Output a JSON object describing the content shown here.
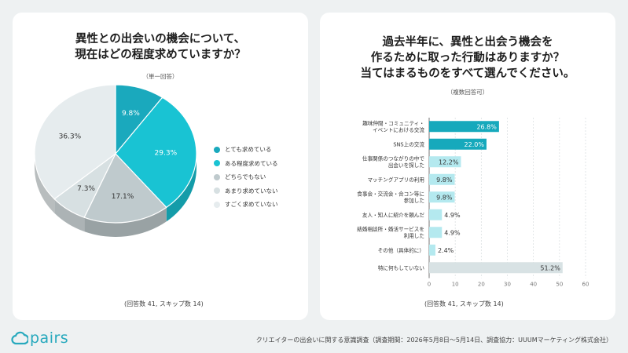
{
  "left_card": {
    "title_line1": "異性との出会いの機会について、",
    "title_line2": "現在はどの程度求めていますか？",
    "subtitle": "（単一回答）",
    "footnote": "(回答数 41, スキップ数 14)"
  },
  "right_card": {
    "title_line1": "過去半年に、異性と出会う機会を",
    "title_line2": "作るために取った行動はありますか？",
    "title_line3": "当てはまるものをすべて選んでください。",
    "subtitle": "（複数回答可）",
    "footnote": "(回答数 41, スキップ数 14)"
  },
  "footer": {
    "logo": "pairs",
    "note": "クリエイターの出会いに関する意識調査（調査期間：2026年5月8日～5月14日、調査協力：UUUMマーケティング株式会社）"
  },
  "chart_data": [
    {
      "type": "pie",
      "labels": [
        "とても求めている",
        "ある程度求めている",
        "どちらでもない",
        "あまり求めていない",
        "すごく求めていない"
      ],
      "values": [
        9.8,
        29.3,
        17.1,
        7.3,
        36.3
      ],
      "value_labels": [
        "9.8%",
        "29.3%",
        "17.1%",
        "7.3%",
        "36.3%"
      ],
      "colors": [
        "#1aa9bd",
        "#19c3d3",
        "#bfcacd",
        "#d7e0e2",
        "#e6ecee"
      ],
      "legend_position": "right"
    },
    {
      "type": "bar",
      "orientation": "horizontal",
      "categories": [
        [
          "趣味仲間・コミュニティ・",
          "イベントにおける交流"
        ],
        [
          "SNS上の交流"
        ],
        [
          "仕事関係のつながりの中で",
          "出会いを探した"
        ],
        [
          "マッチングアプリの利用"
        ],
        [
          "食事会・交流会・合コン等に",
          "参加した"
        ],
        [
          "友人・知人に紹介を頼んだ"
        ],
        [
          "結婚相談所・婚活サービスを",
          "利用した"
        ],
        [
          "その他（具体的に）"
        ],
        [
          "特に何もしていない"
        ]
      ],
      "values": [
        26.8,
        22.0,
        12.2,
        9.8,
        9.8,
        4.9,
        4.9,
        2.4,
        51.2
      ],
      "value_labels": [
        "26.8%",
        "22.0%",
        "12.2%",
        "9.8%",
        "9.8%",
        "4.9%",
        "4.9%",
        "2.4%",
        "51.2%"
      ],
      "colors": [
        "#16a9bc",
        "#16a9bc",
        "#b4e9ef",
        "#b4e9ef",
        "#b4e9ef",
        "#b4e9ef",
        "#b4e9ef",
        "#b4e9ef",
        "#d8e2e4"
      ],
      "xticks": [
        "0",
        "10",
        "20",
        "30",
        "40",
        "50",
        "60"
      ],
      "xlim": [
        0,
        60
      ],
      "grid": true
    }
  ]
}
